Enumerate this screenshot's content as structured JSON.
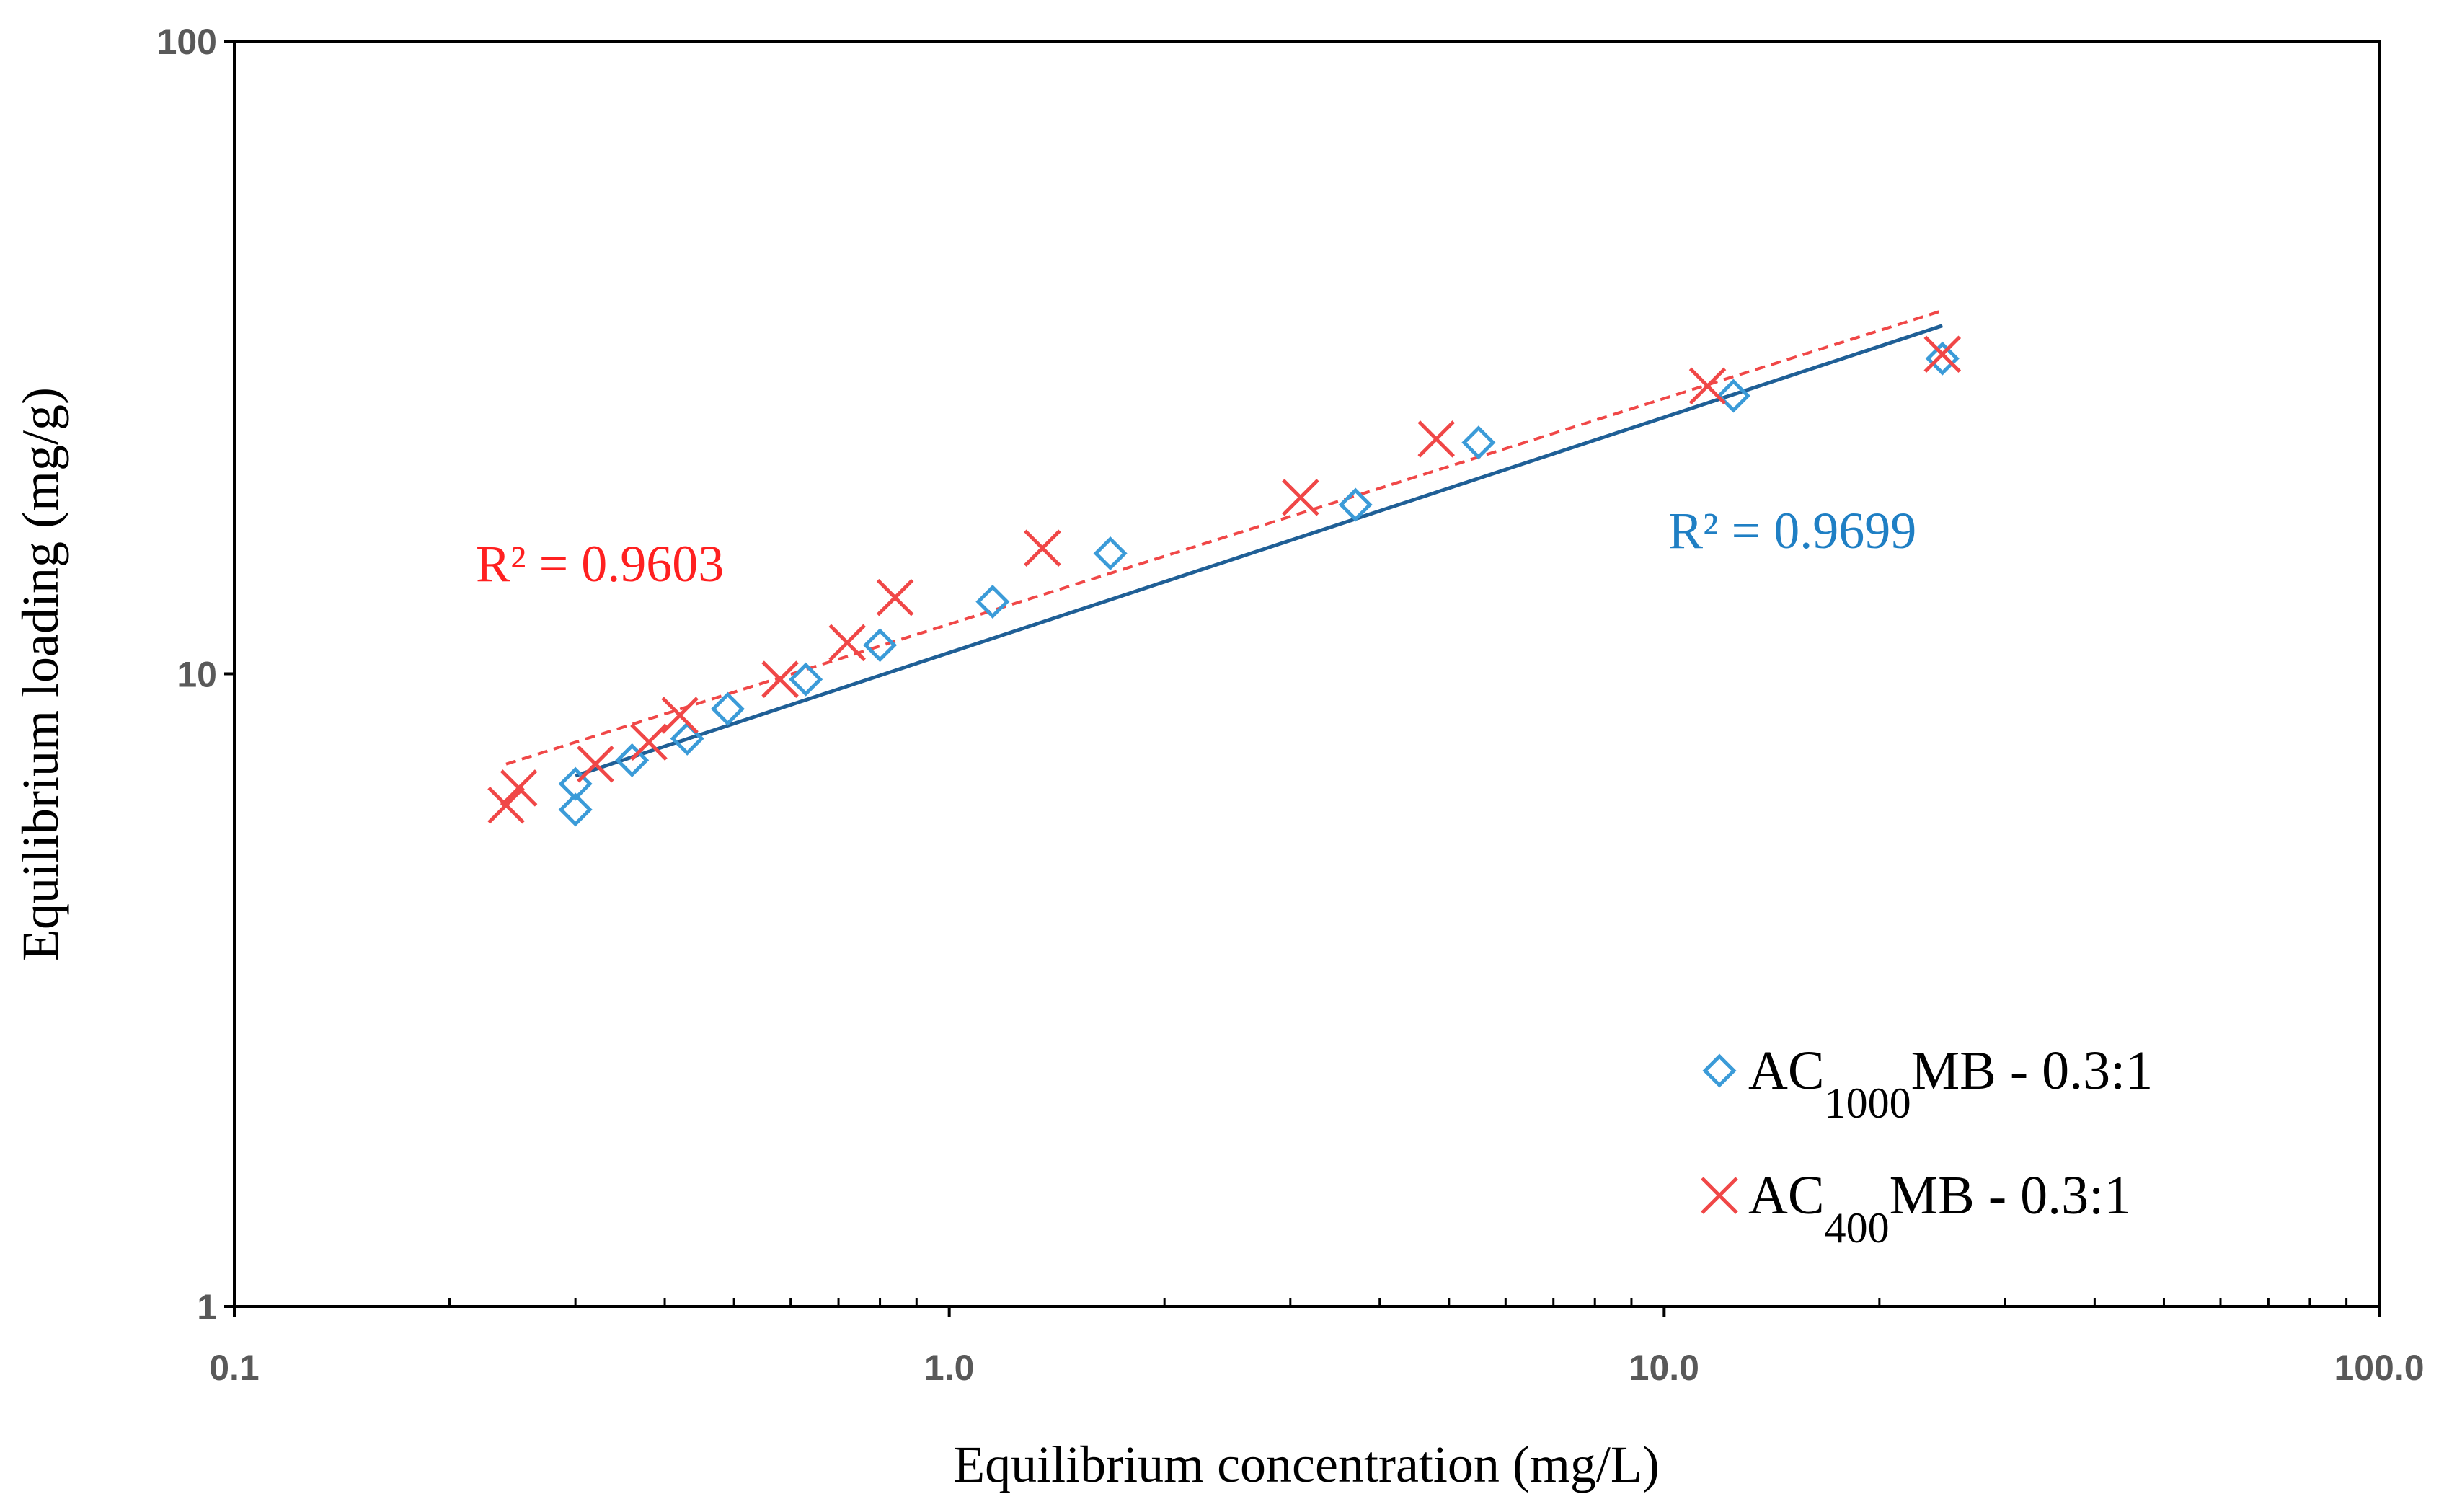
{
  "chart_data": {
    "type": "scatter",
    "title": "",
    "xlabel": "Equilibrium concentration (mg/L)",
    "ylabel": "Equilibrium loading (mg/g)",
    "xscale": "log",
    "yscale": "log",
    "xlim": [
      0.1,
      100
    ],
    "ylim": [
      1,
      100
    ],
    "x_ticks": [
      0.1,
      1,
      10,
      100
    ],
    "x_tick_labels": [
      "0.1",
      "1.0",
      "10.0",
      "100.0"
    ],
    "y_ticks": [
      1,
      10,
      100
    ],
    "y_tick_labels": [
      "1",
      "10",
      "100"
    ],
    "legend_position": "bottom-right",
    "series": [
      {
        "name": "AC1000MB - 0.3:1",
        "legend_main": "AC",
        "legend_sub": "1000",
        "legend_rest": "MB - 0.3:1",
        "marker": "diamond",
        "color": "#3b9bd8",
        "x": [
          0.3,
          0.3,
          0.36,
          0.43,
          0.49,
          0.63,
          0.8,
          1.15,
          1.68,
          3.7,
          5.5,
          12.5,
          24.5
        ],
        "y": [
          6.7,
          6.1,
          7.3,
          7.9,
          8.8,
          9.8,
          11.1,
          13.0,
          15.5,
          18.5,
          23.2,
          27.5,
          31.5
        ],
        "fit": {
          "x_start": 0.3,
          "x_end": 24.5,
          "y_start": 6.9,
          "y_end": 35.5,
          "color": "#1f5f96",
          "dash": "solid"
        },
        "r2_label": "R² = 0.9699",
        "r2_color": "#1f7fc4"
      },
      {
        "name": "AC400MB - 0.3:1",
        "legend_main": "AC",
        "legend_sub": "400",
        "legend_rest": "MB - 0.3:1",
        "marker": "x",
        "color": "#f04747",
        "x": [
          0.24,
          0.25,
          0.32,
          0.38,
          0.42,
          0.58,
          0.72,
          0.84,
          1.35,
          3.1,
          4.8,
          11.5,
          24.5
        ],
        "y": [
          6.2,
          6.6,
          7.2,
          7.8,
          8.6,
          9.8,
          11.2,
          13.2,
          15.8,
          19.0,
          23.5,
          28.5,
          32.0
        ],
        "fit": {
          "x_start": 0.24,
          "x_end": 24.5,
          "y_start": 7.2,
          "y_end": 37.5,
          "color": "#f04747",
          "dash": "dashed"
        },
        "r2_label": "R² = 0.9603",
        "r2_color": "#ff2020"
      }
    ]
  }
}
